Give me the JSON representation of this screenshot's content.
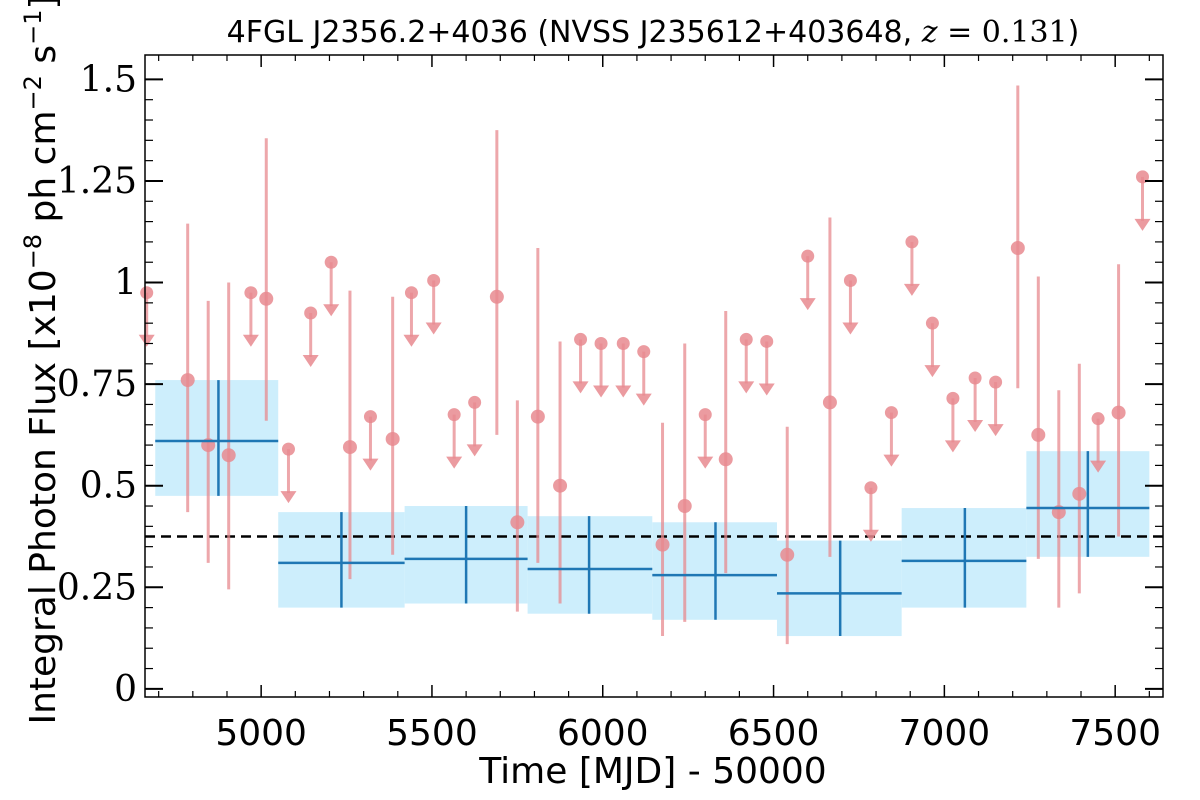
{
  "chart_data": {
    "type": "scatter",
    "title": {
      "prefix": "4FGL J2356.2+4036 (NVSS J235612+403648, ",
      "z_symbol": "z",
      "z_value": " = 0.131",
      "suffix": ")"
    },
    "xlabel": "Time [MJD] - 50000",
    "ylabel": {
      "main": "Integral Photon Flux [x10",
      "exp1": "−8",
      "mid": " ph cm",
      "exp2": "−2",
      "mid2": " s",
      "exp3": "−1",
      "end": "]"
    },
    "xlim": [
      4660,
      7640
    ],
    "ylim": [
      -0.02,
      1.56
    ],
    "xticks": [
      5000,
      5500,
      6000,
      6500,
      7000,
      7500
    ],
    "xtick_labels": [
      "5000",
      "5500",
      "6000",
      "6500",
      "7000",
      "7500"
    ],
    "yticks": [
      0,
      0.25,
      0.5,
      0.75,
      1,
      1.25,
      1.5
    ],
    "ytick_labels": [
      "0",
      "0.25",
      "0.5",
      "0.75",
      "1",
      "1.25",
      "1.5"
    ],
    "mean_flux": 0.375,
    "colors": {
      "monthly": "#e78a8f",
      "yearly": "#1f77b4",
      "yearly_band": "#cdeefc",
      "mean_line": "#000000"
    },
    "monthly_detections": [
      {
        "x": 4785,
        "y": 0.76,
        "lo": 0.435,
        "hi": 1.145
      },
      {
        "x": 4845,
        "y": 0.6,
        "lo": 0.31,
        "hi": 0.955
      },
      {
        "x": 4905,
        "y": 0.575,
        "lo": 0.245,
        "hi": 1.0
      },
      {
        "x": 5015,
        "y": 0.96,
        "lo": 0.66,
        "hi": 1.355
      },
      {
        "x": 5260,
        "y": 0.595,
        "lo": 0.27,
        "hi": 0.98
      },
      {
        "x": 5385,
        "y": 0.615,
        "lo": 0.33,
        "hi": 0.965
      },
      {
        "x": 5690,
        "y": 0.965,
        "lo": 0.625,
        "hi": 1.375
      },
      {
        "x": 5750,
        "y": 0.41,
        "lo": 0.19,
        "hi": 0.71
      },
      {
        "x": 5810,
        "y": 0.67,
        "lo": 0.31,
        "hi": 1.085
      },
      {
        "x": 5875,
        "y": 0.5,
        "lo": 0.21,
        "hi": 0.855
      },
      {
        "x": 6175,
        "y": 0.355,
        "lo": 0.13,
        "hi": 0.655
      },
      {
        "x": 6240,
        "y": 0.45,
        "lo": 0.165,
        "hi": 0.85
      },
      {
        "x": 6360,
        "y": 0.565,
        "lo": 0.285,
        "hi": 0.93
      },
      {
        "x": 6540,
        "y": 0.33,
        "lo": 0.11,
        "hi": 0.645
      },
      {
        "x": 6665,
        "y": 0.705,
        "lo": 0.325,
        "hi": 1.16
      },
      {
        "x": 7215,
        "y": 1.085,
        "lo": 0.74,
        "hi": 1.485
      },
      {
        "x": 7275,
        "y": 0.625,
        "lo": 0.32,
        "hi": 1.015
      },
      {
        "x": 7335,
        "y": 0.435,
        "lo": 0.2,
        "hi": 0.735
      },
      {
        "x": 7395,
        "y": 0.48,
        "lo": 0.235,
        "hi": 0.8
      },
      {
        "x": 7510,
        "y": 0.68,
        "lo": 0.375,
        "hi": 1.045
      }
    ],
    "monthly_upper_limits": [
      {
        "x": 4665,
        "y": 0.975
      },
      {
        "x": 4970,
        "y": 0.975
      },
      {
        "x": 5080,
        "y": 0.59
      },
      {
        "x": 5145,
        "y": 0.925
      },
      {
        "x": 5205,
        "y": 1.05
      },
      {
        "x": 5320,
        "y": 0.67
      },
      {
        "x": 5440,
        "y": 0.975
      },
      {
        "x": 5505,
        "y": 1.005
      },
      {
        "x": 5565,
        "y": 0.675
      },
      {
        "x": 5625,
        "y": 0.705
      },
      {
        "x": 5935,
        "y": 0.86
      },
      {
        "x": 5995,
        "y": 0.85
      },
      {
        "x": 6060,
        "y": 0.85
      },
      {
        "x": 6120,
        "y": 0.83
      },
      {
        "x": 6300,
        "y": 0.675
      },
      {
        "x": 6420,
        "y": 0.86
      },
      {
        "x": 6480,
        "y": 0.855
      },
      {
        "x": 6600,
        "y": 1.065
      },
      {
        "x": 6725,
        "y": 1.005
      },
      {
        "x": 6785,
        "y": 0.495
      },
      {
        "x": 6845,
        "y": 0.68
      },
      {
        "x": 6905,
        "y": 1.1
      },
      {
        "x": 6965,
        "y": 0.9
      },
      {
        "x": 7025,
        "y": 0.715
      },
      {
        "x": 7090,
        "y": 0.765
      },
      {
        "x": 7150,
        "y": 0.755
      },
      {
        "x": 7450,
        "y": 0.665
      },
      {
        "x": 7580,
        "y": 1.26
      }
    ],
    "yearly_bins": [
      {
        "x0": 4690,
        "x1": 5050,
        "x": 4875,
        "y": 0.61,
        "lo": 0.475,
        "hi": 0.76
      },
      {
        "x0": 5050,
        "x1": 5420,
        "x": 5235,
        "y": 0.31,
        "lo": 0.2,
        "hi": 0.435
      },
      {
        "x0": 5420,
        "x1": 5780,
        "x": 5600,
        "y": 0.32,
        "lo": 0.21,
        "hi": 0.45
      },
      {
        "x0": 5780,
        "x1": 6145,
        "x": 5960,
        "y": 0.295,
        "lo": 0.185,
        "hi": 0.425
      },
      {
        "x0": 6145,
        "x1": 6510,
        "x": 6330,
        "y": 0.28,
        "lo": 0.17,
        "hi": 0.41
      },
      {
        "x0": 6510,
        "x1": 6875,
        "x": 6695,
        "y": 0.235,
        "lo": 0.13,
        "hi": 0.365
      },
      {
        "x0": 6875,
        "x1": 7240,
        "x": 7060,
        "y": 0.315,
        "lo": 0.2,
        "hi": 0.445
      },
      {
        "x0": 7240,
        "x1": 7600,
        "x": 7420,
        "y": 0.445,
        "lo": 0.325,
        "hi": 0.585
      }
    ]
  }
}
